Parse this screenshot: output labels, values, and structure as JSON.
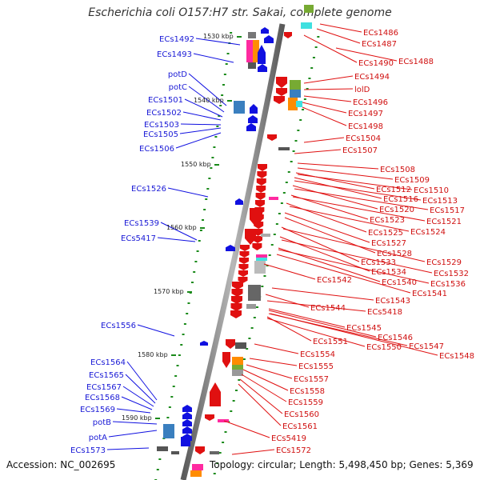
{
  "title": "Escherichia coli O157:H7 str. Sakai, complete genome",
  "accession": "Accession: NC_002695",
  "topology": "Topology: circular; Length: 5,498,450 bp; Genes: 5,369",
  "kbp_labels": [
    "1530 kbp",
    "1540 kbp",
    "1550 kbp",
    "1560 kbp",
    "1570 kbp",
    "1580 kbp",
    "1590 kbp"
  ],
  "left_genes": [
    "ECs1492",
    "ECs1493",
    "potD",
    "potC",
    "ECs1501",
    "ECs1502",
    "ECs1503",
    "ECs1505",
    "ECs1506",
    "ECs1526",
    "ECs1539",
    "ECs5417",
    "ECs1556",
    "ECs1564",
    "ECs1565",
    "ECs1567",
    "ECs1568",
    "ECs1569",
    "potB",
    "potA",
    "ECs1573"
  ],
  "right_genes": [
    "ECs1486",
    "ECs1487",
    "ECs1490",
    "ECs1488",
    "ECs1494",
    "lolD",
    "ECs1496",
    "ECs1497",
    "ECs1498",
    "ECs1504",
    "ECs1507",
    "ECs1508",
    "ECs1509",
    "ECs1512",
    "ECs1510",
    "ECs1516",
    "ECs1513",
    "ECs1520",
    "ECs1517",
    "ECs1523",
    "ECs1521",
    "ECs1525",
    "ECs1524",
    "ECs1527",
    "ECs1528",
    "ECs1533",
    "ECs1529",
    "ECs1534",
    "ECs1532",
    "ECs1542",
    "ECs1540",
    "ECs1536",
    "ECs1541",
    "ECs1543",
    "ECs1544",
    "ECs5418",
    "ECs1545",
    "ECs1546",
    "ECs1551",
    "ECs1550",
    "ECs1547",
    "ECs1548",
    "ECs1554",
    "ECs1555",
    "ECs1557",
    "ECs1558",
    "ECs1559",
    "ECs1560",
    "ECs1561",
    "ECs5419",
    "ECs1572"
  ],
  "colors": {
    "backbone": "#7a7a7a",
    "forward_strand": "#1010e0",
    "reverse_strand": "#e01010",
    "left_label": "#1a1ad6",
    "right_label": "#d01010",
    "tick": "#1a8a1a"
  }
}
